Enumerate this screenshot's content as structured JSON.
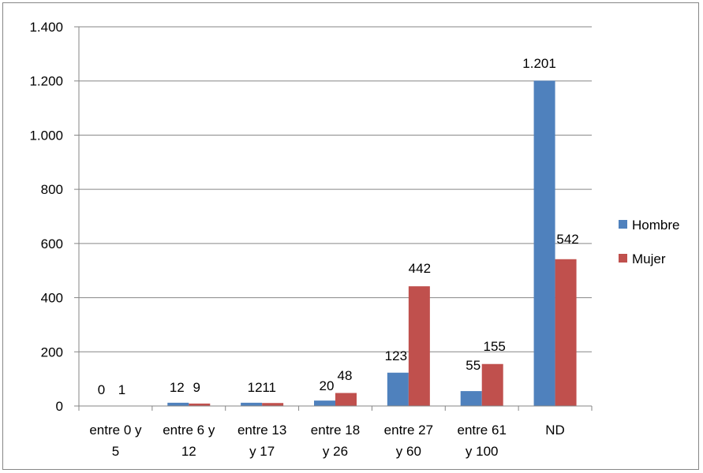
{
  "chart_data": {
    "type": "bar",
    "categories": [
      [
        "entre 0 y",
        "5"
      ],
      [
        "entre 6 y",
        "12"
      ],
      [
        "entre 13",
        "y 17"
      ],
      [
        "entre 18",
        "y 26"
      ],
      [
        "entre 27",
        "y 60"
      ],
      [
        "entre 61",
        "y 100"
      ],
      [
        "ND"
      ]
    ],
    "series": [
      {
        "name": "Hombre",
        "color": "#4F81BD",
        "values": [
          0,
          12,
          12,
          20,
          123,
          55,
          1201
        ],
        "labels": [
          "0",
          "12",
          "12",
          "20",
          "123",
          "55",
          "1.201"
        ]
      },
      {
        "name": "Mujer",
        "color": "#C0504D",
        "values": [
          1,
          9,
          11,
          48,
          442,
          155,
          542
        ],
        "labels": [
          "1",
          "9",
          "11",
          "48",
          "442",
          "155",
          "542"
        ]
      }
    ],
    "ylim": [
      0,
      1400
    ],
    "yticks": [
      0,
      200,
      400,
      600,
      800,
      1000,
      1200,
      1400
    ],
    "ytick_labels": [
      "0",
      "200",
      "400",
      "600",
      "800",
      "1.000",
      "1.200",
      "1.400"
    ],
    "grid": true,
    "legend_position": "right",
    "title": "",
    "xlabel": "",
    "ylabel": ""
  }
}
